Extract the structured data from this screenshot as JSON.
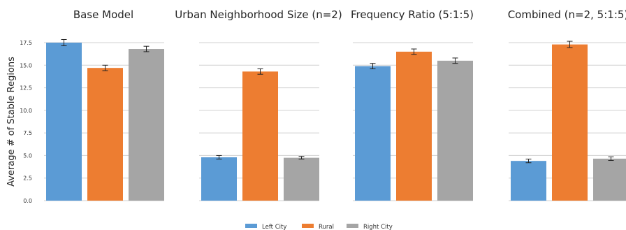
{
  "chart_data": {
    "type": "bar",
    "ylabel": "Average # of Stable Regions",
    "ylim": [
      0,
      17.5
    ],
    "yticks": [
      "0.0",
      "2.5",
      "5.0",
      "7.5",
      "10.0",
      "12.5",
      "15.0",
      "17.5"
    ],
    "grid": true,
    "legend": {
      "placement": "bottom-center",
      "entries": [
        {
          "name": "Left City",
          "color": "#5b9bd5"
        },
        {
          "name": "Rural",
          "color": "#ed7d31"
        },
        {
          "name": "Right City",
          "color": "#a5a5a5"
        }
      ]
    },
    "panels": [
      {
        "title": "Base Model",
        "values": [
          17.5,
          14.7,
          16.8
        ],
        "errors": [
          0.35,
          0.3,
          0.3
        ]
      },
      {
        "title": "Urban Neighborhood Size (n=2)",
        "values": [
          4.8,
          14.3,
          4.75
        ],
        "errors": [
          0.2,
          0.3,
          0.15
        ]
      },
      {
        "title": "Frequency Ratio (5:1:5)",
        "values": [
          14.9,
          16.5,
          15.5
        ],
        "errors": [
          0.3,
          0.3,
          0.3
        ]
      },
      {
        "title": "Combined (n=2, 5:1:5)",
        "values": [
          4.4,
          17.3,
          4.65
        ],
        "errors": [
          0.2,
          0.35,
          0.2
        ]
      }
    ]
  }
}
